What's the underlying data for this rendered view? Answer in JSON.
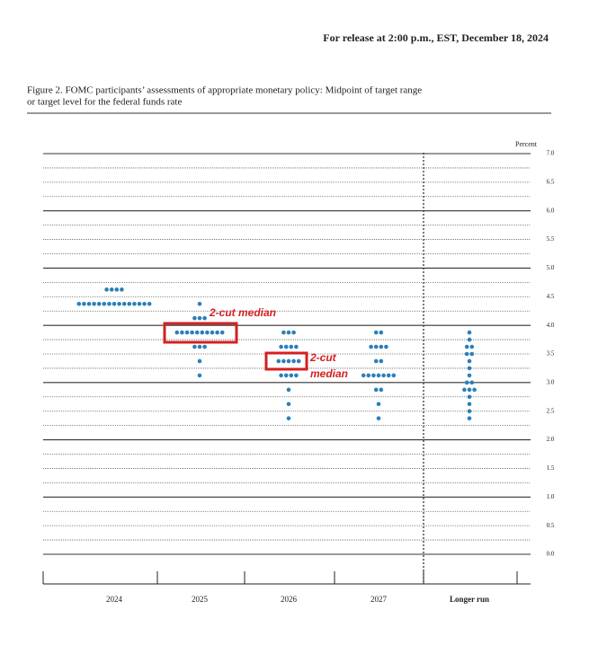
{
  "header": "For release at 2:00 p.m., EST, December 18, 2024",
  "caption": [
    "Figure 2.  FOMC participants’ assessments of appropriate monetary policy: Midpoint of target range",
    "or target level for the federal funds rate"
  ],
  "chart_data": {
    "type": "dot",
    "y_label": "Percent",
    "ylim": [
      0,
      7
    ],
    "yticks": [
      {
        "value": 0,
        "label": "0.0"
      },
      {
        "value": 0.5,
        "label": "0.5"
      },
      {
        "value": 1,
        "label": "1.0"
      },
      {
        "value": 1.5,
        "label": "1.5"
      },
      {
        "value": 2,
        "label": "2.0"
      },
      {
        "value": 2.5,
        "label": "2.5"
      },
      {
        "value": 3,
        "label": "3.0"
      },
      {
        "value": 3.5,
        "label": "3.5"
      },
      {
        "value": 4,
        "label": "4.0"
      },
      {
        "value": 4.5,
        "label": "4.5"
      },
      {
        "value": 5,
        "label": "5.0"
      },
      {
        "value": 5.5,
        "label": "5.5"
      },
      {
        "value": 6,
        "label": "6.0"
      },
      {
        "value": 6.5,
        "label": "6.5"
      },
      {
        "value": 7,
        "label": "7.0"
      }
    ],
    "minor_yticks": [
      0.25,
      0.75,
      1.25,
      1.75,
      2.25,
      2.75,
      3.25,
      3.75,
      4.25,
      4.75,
      5.25,
      5.75,
      6.25,
      6.75
    ],
    "color": "#2a80b9",
    "categories": [
      "2024",
      "2025",
      "2026",
      "2027",
      "Longer run"
    ],
    "series": [
      {
        "levels": [
          {
            "value": 4.625,
            "count": 4
          },
          {
            "value": 4.375,
            "count": 15
          }
        ]
      },
      {
        "levels": [
          {
            "value": 4.375,
            "count": 1
          },
          {
            "value": 4.125,
            "count": 3
          },
          {
            "value": 3.875,
            "count": 10
          },
          {
            "value": 3.625,
            "count": 3
          },
          {
            "value": 3.375,
            "count": 1
          },
          {
            "value": 3.125,
            "count": 1
          }
        ]
      },
      {
        "levels": [
          {
            "value": 3.875,
            "count": 3
          },
          {
            "value": 3.625,
            "count": 4
          },
          {
            "value": 3.375,
            "count": 5
          },
          {
            "value": 3.125,
            "count": 4
          },
          {
            "value": 2.875,
            "count": 1
          },
          {
            "value": 2.625,
            "count": 1
          },
          {
            "value": 2.375,
            "count": 1
          }
        ]
      },
      {
        "levels": [
          {
            "value": 3.875,
            "count": 2
          },
          {
            "value": 3.625,
            "count": 4
          },
          {
            "value": 3.375,
            "count": 2
          },
          {
            "value": 3.125,
            "count": 7
          },
          {
            "value": 2.875,
            "count": 2
          },
          {
            "value": 2.625,
            "count": 1
          },
          {
            "value": 2.375,
            "count": 1
          }
        ]
      },
      {
        "levels": [
          {
            "value": 3.875,
            "count": 1
          },
          {
            "value": 3.75,
            "count": 1
          },
          {
            "value": 3.625,
            "count": 2
          },
          {
            "value": 3.5,
            "count": 2
          },
          {
            "value": 3.375,
            "count": 1
          },
          {
            "value": 3.25,
            "count": 1
          },
          {
            "value": 3.125,
            "count": 1
          },
          {
            "value": 3.0,
            "count": 2
          },
          {
            "value": 2.875,
            "count": 3
          },
          {
            "value": 2.75,
            "count": 1
          },
          {
            "value": 2.625,
            "count": 1
          },
          {
            "value": 2.5,
            "count": 1
          },
          {
            "value": 2.375,
            "count": 1
          }
        ]
      }
    ],
    "annotations": [
      "2-cut median",
      "2-cut",
      "median"
    ]
  }
}
